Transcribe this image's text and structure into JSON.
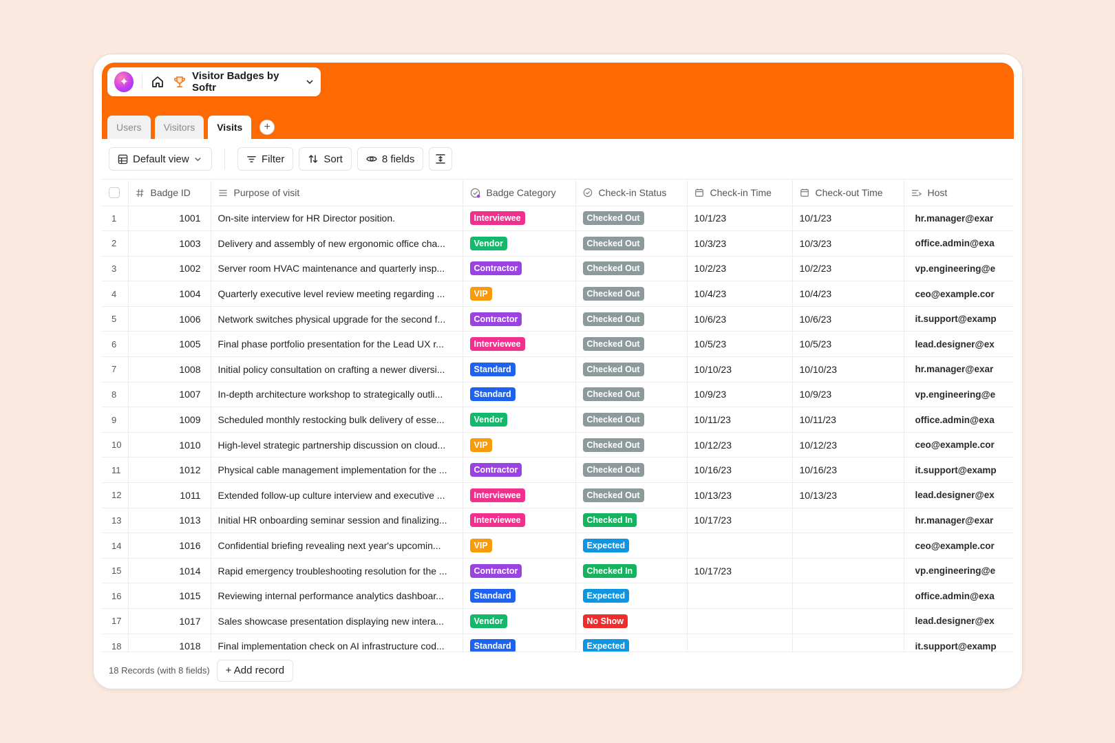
{
  "app": {
    "title": "Visitor Badges by Softr",
    "logo_icon": "sparkle-icon"
  },
  "tabs": [
    {
      "label": "Users",
      "active": false
    },
    {
      "label": "Visitors",
      "active": false
    },
    {
      "label": "Visits",
      "active": true
    }
  ],
  "toolbar": {
    "view_label": "Default view",
    "filter_label": "Filter",
    "sort_label": "Sort",
    "fields_label": "8 fields"
  },
  "columns": [
    {
      "key": "badge_id",
      "label": "Badge ID",
      "icon": "hash-icon"
    },
    {
      "key": "purpose",
      "label": "Purpose of visit",
      "icon": "lines-icon"
    },
    {
      "key": "category",
      "label": "Badge Category",
      "icon": "tag-icon"
    },
    {
      "key": "status",
      "label": "Check-in Status",
      "icon": "check-circle-icon"
    },
    {
      "key": "checkin",
      "label": "Check-in Time",
      "icon": "calendar-icon"
    },
    {
      "key": "checkout",
      "label": "Check-out Time",
      "icon": "calendar-icon"
    },
    {
      "key": "host",
      "label": "Host",
      "icon": "list-icon"
    }
  ],
  "category_colors": {
    "Interviewee": "#f12f8d",
    "Vendor": "#14b86a",
    "Contractor": "#9b42e2",
    "VIP": "#f99a0b",
    "Standard": "#1e63ef"
  },
  "status_colors": {
    "Checked Out": "#8d9a9c",
    "Checked In": "#15b35f",
    "Expected": "#1096e0",
    "No Show": "#f02d2d"
  },
  "rows": [
    {
      "n": "1",
      "badge_id": "1001",
      "purpose": "On-site interview for HR Director position.",
      "category": "Interviewee",
      "status": "Checked Out",
      "checkin": "10/1/23",
      "checkout": "10/1/23",
      "host": "hr.manager@exar"
    },
    {
      "n": "2",
      "badge_id": "1003",
      "purpose": "Delivery and assembly of new ergonomic office cha...",
      "category": "Vendor",
      "status": "Checked Out",
      "checkin": "10/3/23",
      "checkout": "10/3/23",
      "host": "office.admin@exa"
    },
    {
      "n": "3",
      "badge_id": "1002",
      "purpose": "Server room HVAC maintenance and quarterly insp...",
      "category": "Contractor",
      "status": "Checked Out",
      "checkin": "10/2/23",
      "checkout": "10/2/23",
      "host": "vp.engineering@e"
    },
    {
      "n": "4",
      "badge_id": "1004",
      "purpose": "Quarterly executive level review meeting regarding ...",
      "category": "VIP",
      "status": "Checked Out",
      "checkin": "10/4/23",
      "checkout": "10/4/23",
      "host": "ceo@example.cor"
    },
    {
      "n": "5",
      "badge_id": "1006",
      "purpose": "Network switches physical upgrade for the second f...",
      "category": "Contractor",
      "status": "Checked Out",
      "checkin": "10/6/23",
      "checkout": "10/6/23",
      "host": "it.support@examp"
    },
    {
      "n": "6",
      "badge_id": "1005",
      "purpose": "Final phase portfolio presentation for the Lead UX r...",
      "category": "Interviewee",
      "status": "Checked Out",
      "checkin": "10/5/23",
      "checkout": "10/5/23",
      "host": "lead.designer@ex"
    },
    {
      "n": "7",
      "badge_id": "1008",
      "purpose": "Initial policy consultation on crafting a newer diversi...",
      "category": "Standard",
      "status": "Checked Out",
      "checkin": "10/10/23",
      "checkout": "10/10/23",
      "host": "hr.manager@exar"
    },
    {
      "n": "8",
      "badge_id": "1007",
      "purpose": "In-depth architecture workshop to strategically outli...",
      "category": "Standard",
      "status": "Checked Out",
      "checkin": "10/9/23",
      "checkout": "10/9/23",
      "host": "vp.engineering@e"
    },
    {
      "n": "9",
      "badge_id": "1009",
      "purpose": "Scheduled monthly restocking bulk delivery of esse...",
      "category": "Vendor",
      "status": "Checked Out",
      "checkin": "10/11/23",
      "checkout": "10/11/23",
      "host": "office.admin@exa"
    },
    {
      "n": "10",
      "badge_id": "1010",
      "purpose": "High-level strategic partnership discussion on cloud...",
      "category": "VIP",
      "status": "Checked Out",
      "checkin": "10/12/23",
      "checkout": "10/12/23",
      "host": "ceo@example.cor"
    },
    {
      "n": "11",
      "badge_id": "1012",
      "purpose": "Physical cable management implementation for the ...",
      "category": "Contractor",
      "status": "Checked Out",
      "checkin": "10/16/23",
      "checkout": "10/16/23",
      "host": "it.support@examp"
    },
    {
      "n": "12",
      "badge_id": "1011",
      "purpose": "Extended follow-up culture interview and executive ...",
      "category": "Interviewee",
      "status": "Checked Out",
      "checkin": "10/13/23",
      "checkout": "10/13/23",
      "host": "lead.designer@ex"
    },
    {
      "n": "13",
      "badge_id": "1013",
      "purpose": "Initial HR onboarding seminar session and finalizing...",
      "category": "Interviewee",
      "status": "Checked In",
      "checkin": "10/17/23",
      "checkout": "",
      "host": "hr.manager@exar"
    },
    {
      "n": "14",
      "badge_id": "1016",
      "purpose": "Confidential briefing revealing next year's upcomin...",
      "category": "VIP",
      "status": "Expected",
      "checkin": "",
      "checkout": "",
      "host": "ceo@example.cor"
    },
    {
      "n": "15",
      "badge_id": "1014",
      "purpose": "Rapid emergency troubleshooting resolution for the ...",
      "category": "Contractor",
      "status": "Checked In",
      "checkin": "10/17/23",
      "checkout": "",
      "host": "vp.engineering@e"
    },
    {
      "n": "16",
      "badge_id": "1015",
      "purpose": "Reviewing internal performance analytics dashboar...",
      "category": "Standard",
      "status": "Expected",
      "checkin": "",
      "checkout": "",
      "host": "office.admin@exa"
    },
    {
      "n": "17",
      "badge_id": "1017",
      "purpose": "Sales showcase presentation displaying new intera...",
      "category": "Vendor",
      "status": "No Show",
      "checkin": "",
      "checkout": "",
      "host": "lead.designer@ex"
    },
    {
      "n": "18",
      "badge_id": "1018",
      "purpose": "Final implementation check on AI infrastructure cod...",
      "category": "Standard",
      "status": "Expected",
      "checkin": "",
      "checkout": "",
      "host": "it.support@examp"
    }
  ],
  "footer": {
    "record_count": "18 Records (with 8 fields)",
    "add_record_label": "+ Add record"
  }
}
